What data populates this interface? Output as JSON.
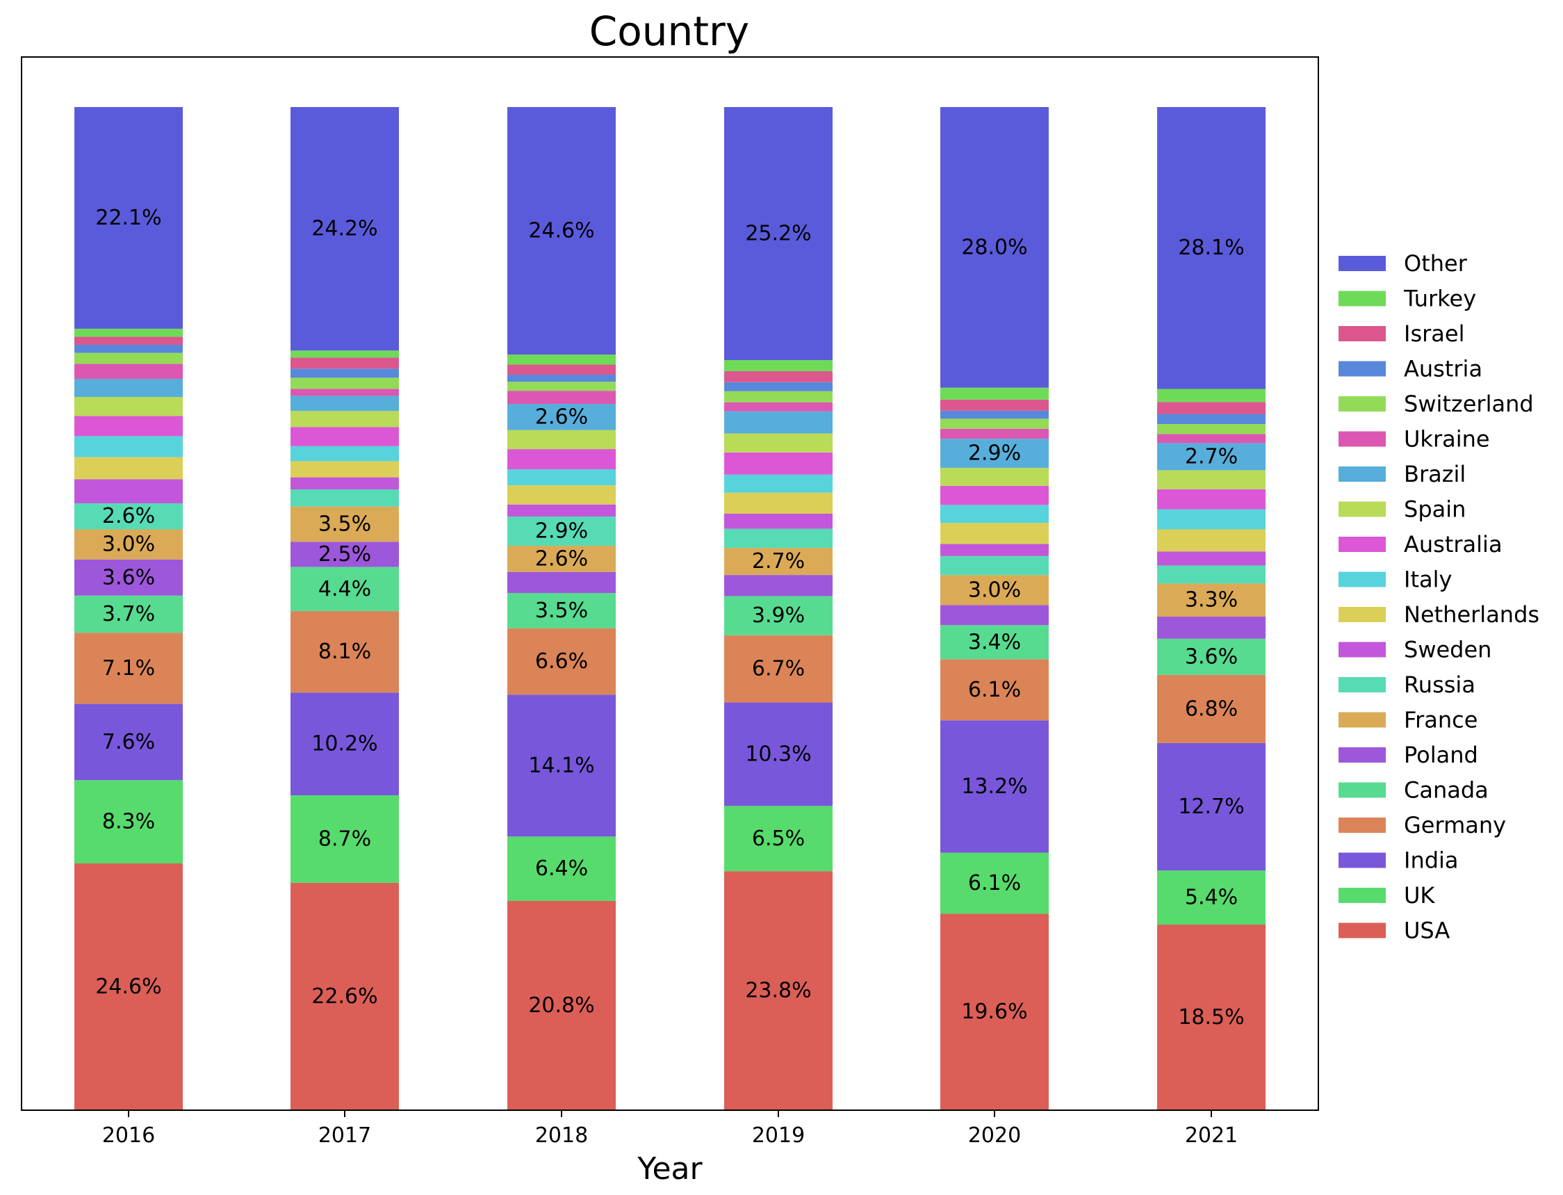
{
  "chart_data": {
    "type": "bar",
    "stacked": true,
    "normalized_percent": true,
    "title": "Country",
    "xlabel": "Year",
    "ylabel": "",
    "categories": [
      "2016",
      "2017",
      "2018",
      "2019",
      "2020",
      "2021"
    ],
    "ylim": [
      0,
      100
    ],
    "legend_position": "right",
    "grid": false,
    "series": [
      {
        "name": "USA",
        "color": "#db5f57",
        "values": [
          24.6,
          22.6,
          20.8,
          23.8,
          19.6,
          18.5
        ]
      },
      {
        "name": "UK",
        "color": "#57db6c",
        "values": [
          8.3,
          8.7,
          6.4,
          6.5,
          6.1,
          5.4
        ]
      },
      {
        "name": "India",
        "color": "#7857db",
        "values": [
          7.6,
          10.2,
          14.1,
          10.3,
          13.2,
          12.7
        ]
      },
      {
        "name": "Germany",
        "color": "#db8457",
        "values": [
          7.1,
          8.1,
          6.6,
          6.7,
          6.1,
          6.8
        ]
      },
      {
        "name": "Canada",
        "color": "#57db90",
        "values": [
          3.7,
          4.4,
          3.5,
          3.9,
          3.4,
          3.6
        ]
      },
      {
        "name": "Poland",
        "color": "#9d57db",
        "values": [
          3.6,
          2.5,
          2.1,
          2.1,
          2.0,
          2.2
        ]
      },
      {
        "name": "France",
        "color": "#dbaa57",
        "values": [
          3.0,
          3.5,
          2.6,
          2.7,
          3.0,
          3.3
        ]
      },
      {
        "name": "Russia",
        "color": "#57dbb5",
        "values": [
          2.6,
          1.7,
          2.9,
          1.9,
          1.9,
          1.8
        ]
      },
      {
        "name": "Sweden",
        "color": "#c257db",
        "values": [
          2.4,
          1.2,
          1.2,
          1.5,
          1.2,
          1.4
        ]
      },
      {
        "name": "Netherlands",
        "color": "#dbcf57",
        "values": [
          2.2,
          1.6,
          1.9,
          2.1,
          2.1,
          2.2
        ]
      },
      {
        "name": "Italy",
        "color": "#57d3db",
        "values": [
          2.1,
          1.5,
          1.6,
          1.8,
          1.8,
          2.0
        ]
      },
      {
        "name": "Australia",
        "color": "#db57d6",
        "values": [
          2.0,
          1.9,
          2.0,
          2.2,
          1.9,
          2.0
        ]
      },
      {
        "name": "Spain",
        "color": "#b9db57",
        "values": [
          1.9,
          1.6,
          1.9,
          1.9,
          1.8,
          1.9
        ]
      },
      {
        "name": "Brazil",
        "color": "#57aedb",
        "values": [
          1.8,
          1.5,
          2.6,
          2.2,
          2.9,
          2.7
        ]
      },
      {
        "name": "Ukraine",
        "color": "#db57b2",
        "values": [
          1.5,
          0.7,
          1.3,
          0.9,
          1.0,
          0.9
        ]
      },
      {
        "name": "Switzerland",
        "color": "#93db57",
        "values": [
          1.1,
          1.1,
          0.9,
          1.1,
          1.0,
          1.0
        ]
      },
      {
        "name": "Austria",
        "color": "#5788db",
        "values": [
          0.8,
          0.9,
          0.7,
          0.9,
          0.8,
          1.0
        ]
      },
      {
        "name": "Israel",
        "color": "#db578d",
        "values": [
          0.8,
          1.1,
          1.0,
          1.1,
          1.1,
          1.2
        ]
      },
      {
        "name": "Turkey",
        "color": "#6edb57",
        "values": [
          0.8,
          0.7,
          1.0,
          1.1,
          1.2,
          1.3
        ]
      },
      {
        "name": "Other",
        "color": "#5a5bdb",
        "values": [
          22.1,
          24.2,
          24.6,
          25.2,
          28.0,
          28.1
        ]
      }
    ]
  }
}
